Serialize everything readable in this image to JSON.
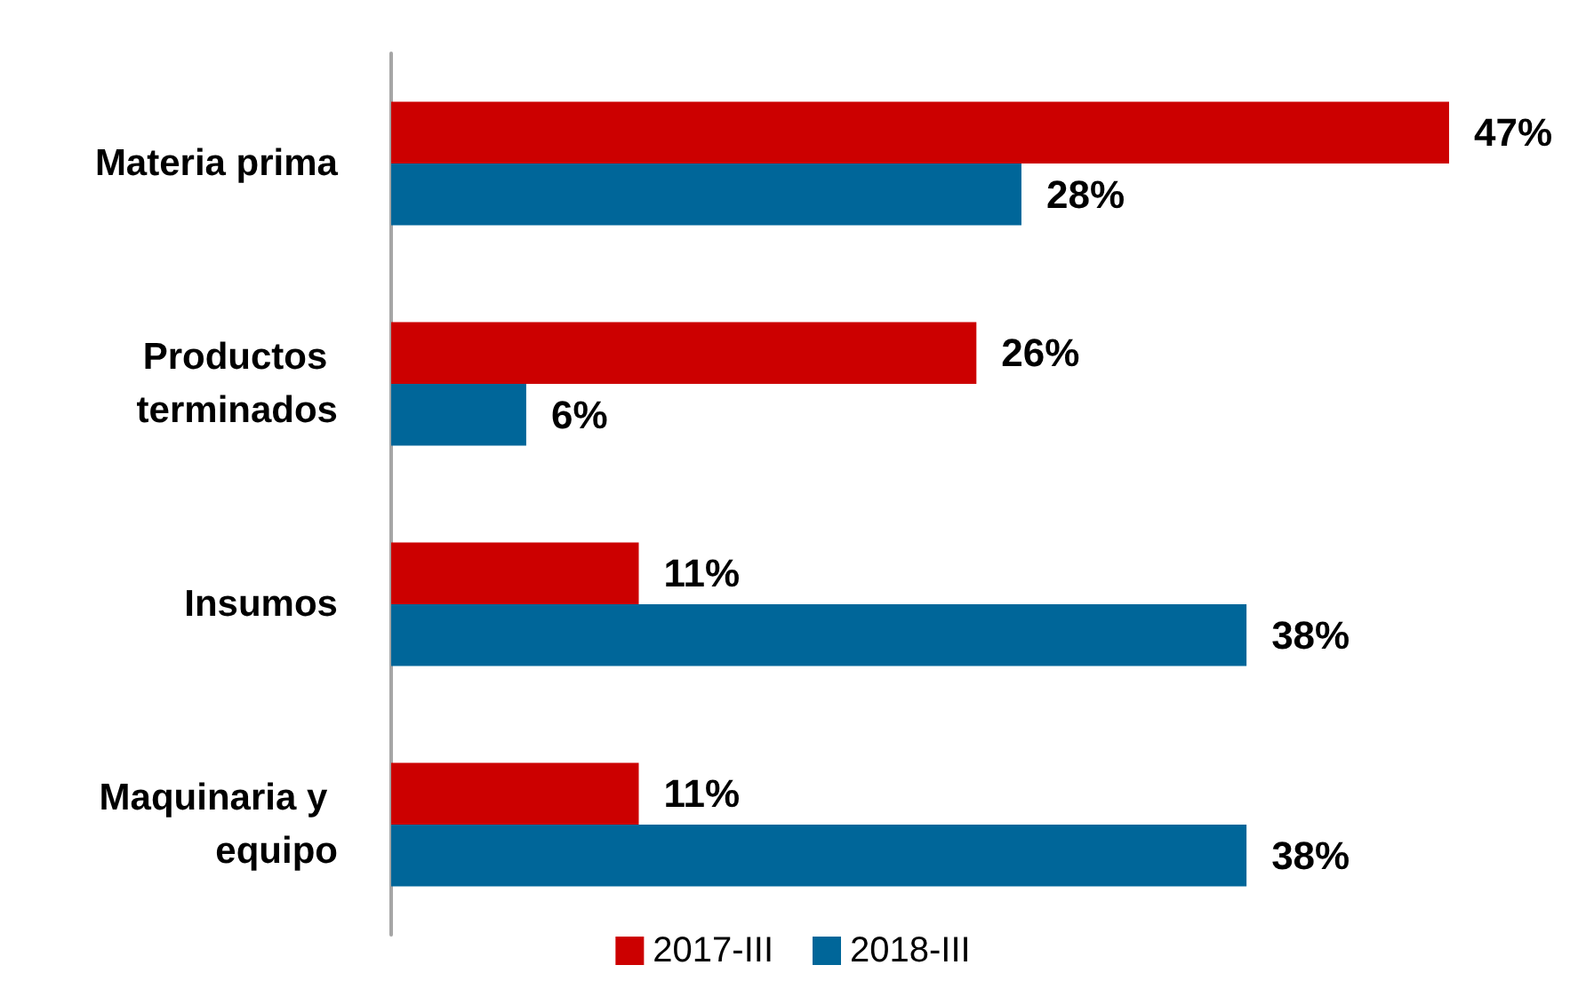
{
  "chart_data": {
    "type": "bar",
    "orientation": "horizontal",
    "tick_labels": "y",
    "legend": "bottom",
    "categories": [
      "Materia prima",
      "Productos terminados",
      "Insumos",
      "Maquinaria y equipo"
    ],
    "series": [
      {
        "name": "2017-III",
        "color": "#cc0000",
        "values": [
          47,
          26,
          11,
          11
        ],
        "value_labels": [
          "47%",
          "26%",
          "11%",
          "11%"
        ]
      },
      {
        "name": "2018-III",
        "color": "#006699",
        "values": [
          28,
          6,
          38,
          38
        ],
        "value_labels": [
          "28%",
          "6%",
          "38%",
          "38%"
        ]
      }
    ]
  }
}
